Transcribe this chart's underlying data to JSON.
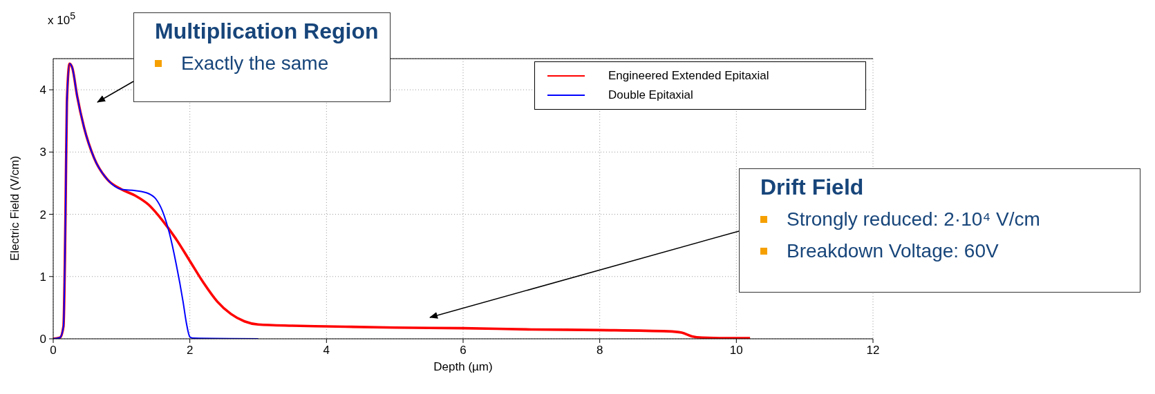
{
  "chart_data": {
    "type": "line",
    "xlabel": "Depth (µm)",
    "ylabel": "Electric Field (V/cm)",
    "xlim": [
      0,
      12
    ],
    "xticks": [
      0,
      2,
      4,
      6,
      8,
      10,
      12
    ],
    "ylim": [
      0,
      4.5
    ],
    "yticks": [
      0,
      1,
      2,
      3,
      4
    ],
    "grid": true,
    "legend": "top right",
    "line_style": "solid",
    "marker": "none",
    "series": [
      {
        "name": "Engineered Extended Epitaxial",
        "color": "#ff0000",
        "x": [
          0,
          0.1,
          0.15,
          0.18,
          0.2,
          0.24,
          0.28,
          0.35,
          0.45,
          0.6,
          0.8,
          1.0,
          1.2,
          1.4,
          1.6,
          1.8,
          2.0,
          2.2,
          2.4,
          2.6,
          2.8,
          3.0,
          3.5,
          4,
          5,
          6,
          7,
          8,
          9,
          9.2,
          9.35,
          9.5,
          10,
          10.2
        ],
        "values": [
          0,
          0.02,
          0.2,
          2,
          3.8,
          4.42,
          4.35,
          3.9,
          3.4,
          2.9,
          2.55,
          2.4,
          2.3,
          2.15,
          1.9,
          1.6,
          1.25,
          0.9,
          0.6,
          0.4,
          0.28,
          0.23,
          0.21,
          0.2,
          0.18,
          0.17,
          0.15,
          0.14,
          0.12,
          0.1,
          0.04,
          0.02,
          0.01,
          0.01
        ]
      },
      {
        "name": "Double Epitaxial",
        "color": "#0000ff",
        "x": [
          0,
          0.1,
          0.15,
          0.18,
          0.2,
          0.24,
          0.28,
          0.35,
          0.45,
          0.6,
          0.8,
          1.0,
          1.2,
          1.4,
          1.5,
          1.6,
          1.7,
          1.8,
          1.9,
          1.95,
          2.0,
          2.05,
          3.0
        ],
        "values": [
          0,
          0.02,
          0.2,
          2,
          3.8,
          4.42,
          4.35,
          3.9,
          3.4,
          2.9,
          2.55,
          2.4,
          2.38,
          2.33,
          2.25,
          2.05,
          1.7,
          1.2,
          0.6,
          0.25,
          0.03,
          0.01,
          0
        ]
      }
    ],
    "annotations": [
      "x 10$^{5}$",
      "Multiplication Region",
      "Exactly the same",
      "Drift Field",
      "Strongly reduced: 2·10⁴ V/cm",
      "Breakdown Voltage: 60V"
    ]
  }
}
